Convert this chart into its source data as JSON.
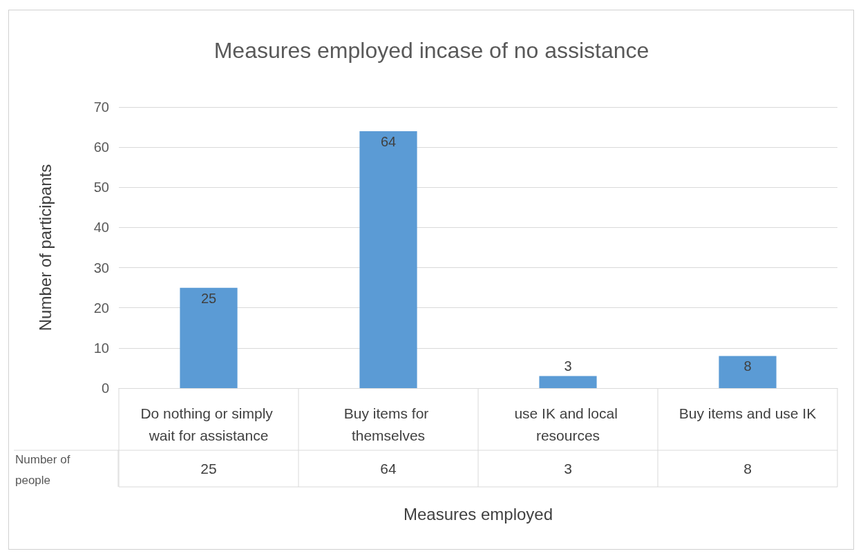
{
  "chart_data": {
    "type": "bar",
    "title": "Measures employed incase of no assistance",
    "xlabel": "Measures employed",
    "ylabel": "Number of participants",
    "categories": [
      "Do nothing or simply wait for assistance",
      "Buy items for themselves",
      "use IK and local resources",
      "Buy items and use IK"
    ],
    "series": [
      {
        "name": "Number of people",
        "color": "#5b9bd5",
        "values": [
          25,
          64,
          3,
          8
        ],
        "value_labels": [
          "25",
          "64",
          "3",
          "8"
        ]
      }
    ],
    "ylim": [
      0,
      70
    ],
    "yticks": [
      0,
      10,
      20,
      30,
      40,
      50,
      60,
      70
    ],
    "grid": "y",
    "data_labels": true,
    "legend": false
  }
}
